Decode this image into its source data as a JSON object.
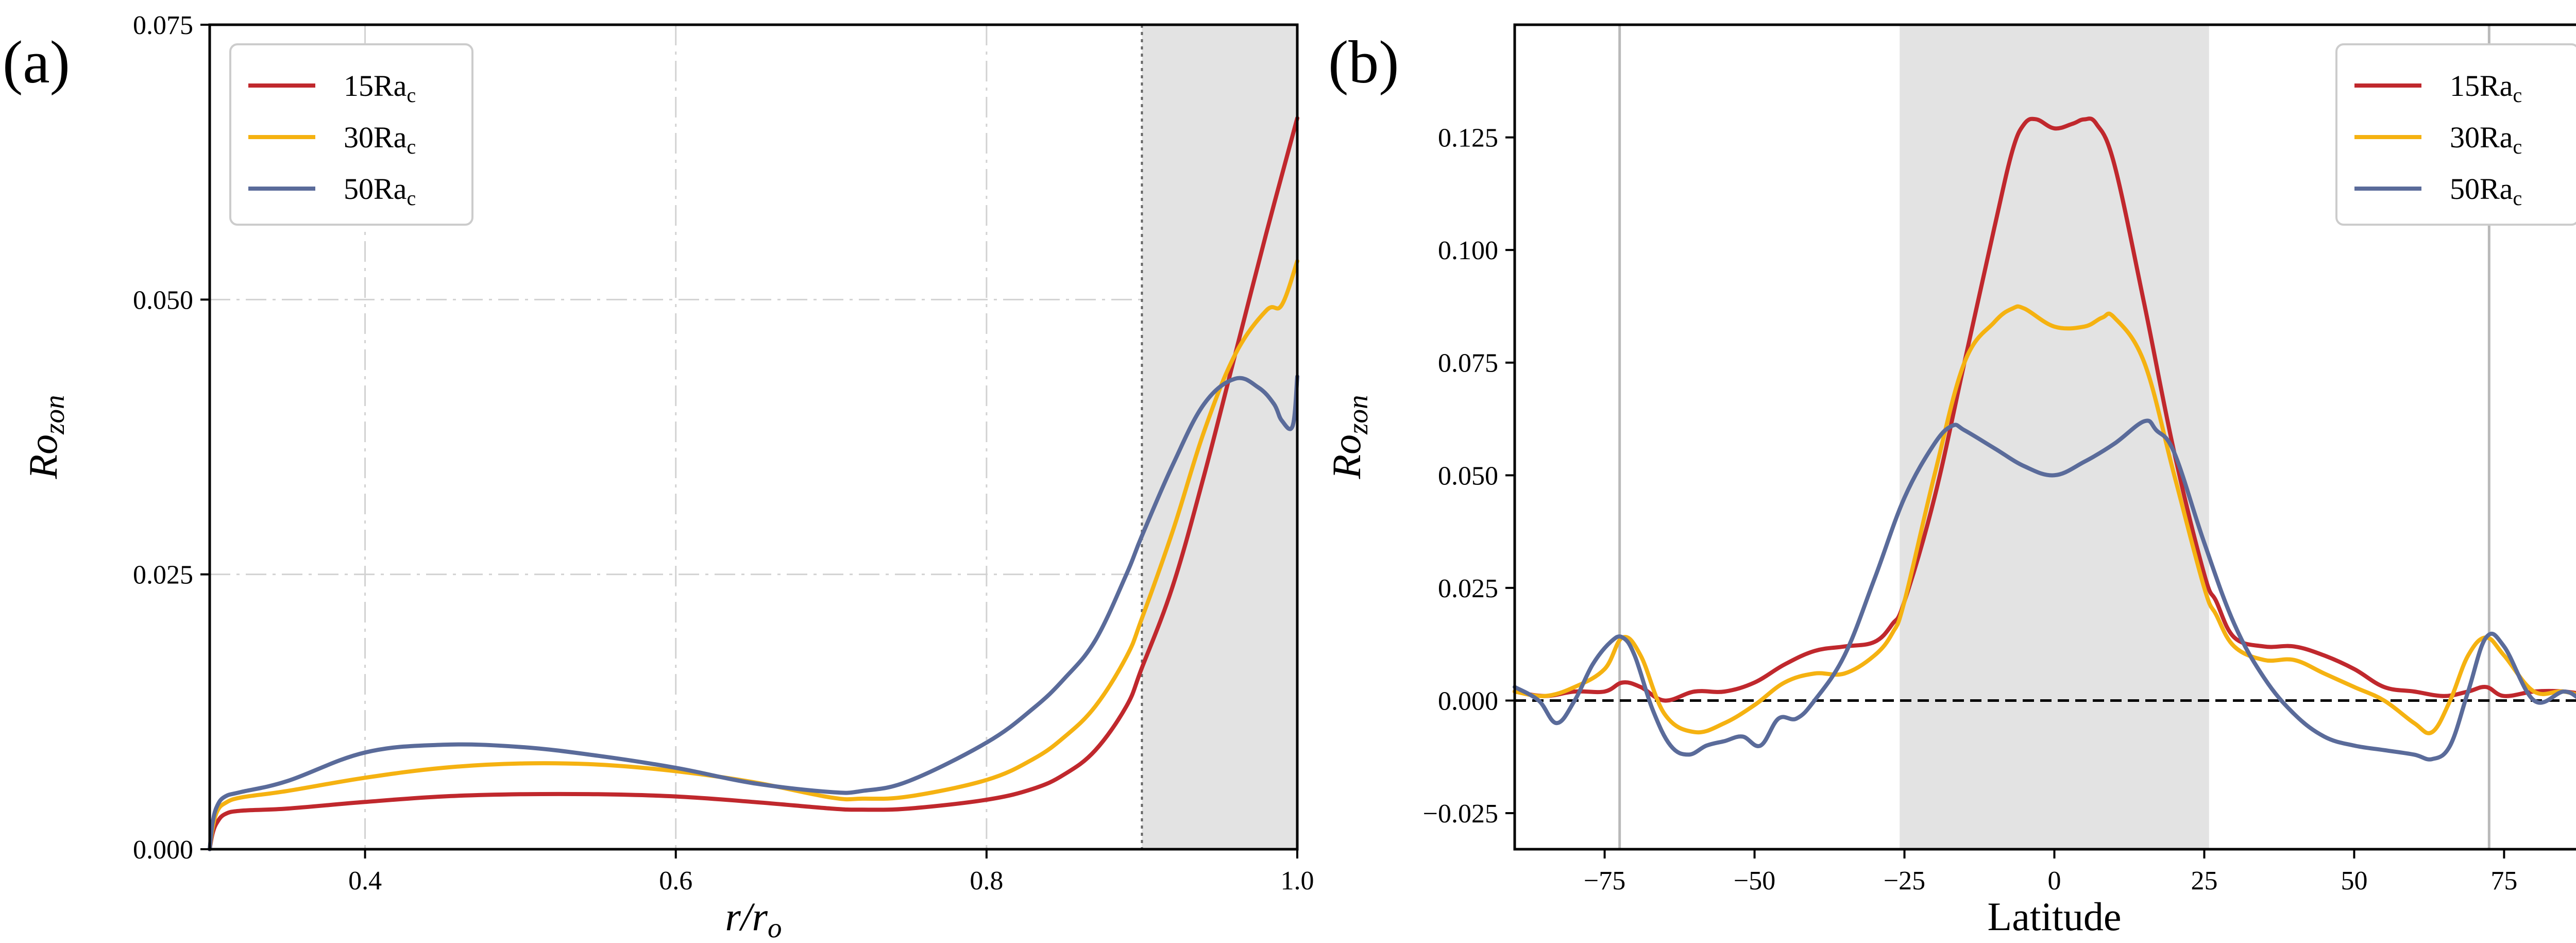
{
  "chart_data": [
    {
      "panel_label": "(a)",
      "type": "line",
      "xlabel": "r/r",
      "xlabel_sub": "o",
      "ylabel": "Ro",
      "ylabel_sub": "zon",
      "xlim": [
        0.3,
        1.0
      ],
      "ylim": [
        0.0,
        0.075
      ],
      "xticks": [
        0.4,
        0.6,
        0.8,
        1.0
      ],
      "xtick_labels": [
        "0.4",
        "0.6",
        "0.8",
        "1.0"
      ],
      "yticks": [
        0.0,
        0.025,
        0.05,
        0.075
      ],
      "ytick_labels": [
        "0.000",
        "0.025",
        "0.050",
        "0.075"
      ],
      "grid": "dash-dot",
      "shaded_region": [
        0.9,
        1.0
      ],
      "vline": 0.9,
      "legend_position": "top-left",
      "series": [
        {
          "name": "15Ra",
          "name_sub": "c",
          "color": "#c0282d",
          "x": [
            0.3,
            0.302,
            0.305,
            0.31,
            0.32,
            0.35,
            0.4,
            0.45,
            0.5,
            0.55,
            0.6,
            0.65,
            0.7,
            0.72,
            0.75,
            0.8,
            0.83,
            0.85,
            0.87,
            0.89,
            0.9,
            0.92,
            0.94,
            0.96,
            0.98,
            1.0
          ],
          "y": [
            0.0,
            0.0015,
            0.0025,
            0.0032,
            0.0035,
            0.0037,
            0.0043,
            0.0048,
            0.005,
            0.005,
            0.0048,
            0.0043,
            0.0037,
            0.0036,
            0.0037,
            0.0045,
            0.0055,
            0.0068,
            0.009,
            0.013,
            0.0165,
            0.024,
            0.034,
            0.045,
            0.056,
            0.0665
          ]
        },
        {
          "name": "30Ra",
          "name_sub": "c",
          "color": "#f5b211",
          "x": [
            0.3,
            0.302,
            0.305,
            0.31,
            0.32,
            0.35,
            0.4,
            0.45,
            0.5,
            0.55,
            0.6,
            0.65,
            0.7,
            0.72,
            0.75,
            0.8,
            0.83,
            0.85,
            0.87,
            0.89,
            0.9,
            0.92,
            0.94,
            0.96,
            0.98,
            0.99,
            1.0
          ],
          "y": [
            0.0,
            0.002,
            0.0035,
            0.0042,
            0.0047,
            0.0053,
            0.0065,
            0.0074,
            0.0078,
            0.0077,
            0.0071,
            0.0061,
            0.0047,
            0.0046,
            0.0048,
            0.0063,
            0.0082,
            0.0102,
            0.013,
            0.0175,
            0.021,
            0.029,
            0.038,
            0.045,
            0.049,
            0.0495,
            0.0535
          ]
        },
        {
          "name": "50Ra",
          "name_sub": "c",
          "color": "#5a6b9a",
          "x": [
            0.3,
            0.302,
            0.305,
            0.31,
            0.32,
            0.35,
            0.4,
            0.45,
            0.5,
            0.55,
            0.6,
            0.65,
            0.7,
            0.72,
            0.75,
            0.8,
            0.83,
            0.85,
            0.87,
            0.89,
            0.9,
            0.92,
            0.94,
            0.96,
            0.975,
            0.985,
            0.99,
            0.997,
            1.0
          ],
          "y": [
            0.0,
            0.0025,
            0.004,
            0.0048,
            0.0052,
            0.0062,
            0.0088,
            0.0095,
            0.0093,
            0.0085,
            0.0074,
            0.006,
            0.0052,
            0.0053,
            0.0062,
            0.0097,
            0.0128,
            0.0155,
            0.019,
            0.025,
            0.0285,
            0.035,
            0.0405,
            0.0428,
            0.042,
            0.0405,
            0.039,
            0.0385,
            0.043
          ]
        }
      ]
    },
    {
      "panel_label": "(b)",
      "type": "line",
      "xlabel": "Latitude",
      "ylabel": "Ro",
      "ylabel_sub": "zon",
      "xlim": [
        -90,
        90
      ],
      "ylim": [
        -0.033,
        0.15
      ],
      "xticks": [
        -75,
        -50,
        -25,
        0,
        25,
        50,
        75
      ],
      "xtick_labels": [
        "−75",
        "−50",
        "−25",
        "0",
        "25",
        "50",
        "75"
      ],
      "yticks": [
        -0.025,
        0.0,
        0.025,
        0.05,
        0.075,
        0.1,
        0.125
      ],
      "ytick_labels": [
        "−0.025",
        "0.000",
        "0.025",
        "0.050",
        "0.075",
        "0.100",
        "0.125"
      ],
      "grid": "none",
      "shaded_region": [
        -25.8,
        25.8
      ],
      "vlines": [
        -72.5,
        72.5
      ],
      "hline": 0.0,
      "legend_position": "top-right",
      "series": [
        {
          "name": "15Ra",
          "name_sub": "c",
          "color": "#c0282d",
          "x": [
            -90,
            -85,
            -80,
            -75,
            -72,
            -69,
            -65,
            -60,
            -55,
            -50,
            -45,
            -40,
            -35,
            -30,
            -27,
            -25,
            -20,
            -15,
            -10,
            -7,
            -5,
            -3,
            0,
            3,
            5,
            7,
            10,
            15,
            20,
            25,
            27,
            30,
            35,
            40,
            45,
            50,
            55,
            60,
            65,
            69,
            72,
            75,
            80,
            85,
            90
          ],
          "y": [
            0.002,
            0.001,
            0.002,
            0.002,
            0.004,
            0.003,
            0.0,
            0.002,
            0.002,
            0.004,
            0.008,
            0.011,
            0.012,
            0.013,
            0.017,
            0.022,
            0.045,
            0.075,
            0.105,
            0.122,
            0.128,
            0.129,
            0.127,
            0.128,
            0.129,
            0.128,
            0.119,
            0.088,
            0.055,
            0.028,
            0.022,
            0.014,
            0.012,
            0.012,
            0.01,
            0.007,
            0.003,
            0.002,
            0.001,
            0.002,
            0.003,
            0.001,
            0.002,
            0.002,
            0.001
          ]
        },
        {
          "name": "30Ra",
          "name_sub": "c",
          "color": "#f5b211",
          "x": [
            -90,
            -85,
            -80,
            -75,
            -72,
            -69,
            -65,
            -60,
            -55,
            -50,
            -45,
            -40,
            -35,
            -30,
            -27,
            -25,
            -20,
            -15,
            -10,
            -7,
            -5,
            0,
            5,
            8,
            10,
            15,
            20,
            25,
            27,
            30,
            35,
            40,
            45,
            50,
            55,
            60,
            63,
            66,
            69,
            72,
            75,
            80,
            85,
            90
          ],
          "y": [
            0.002,
            0.001,
            0.003,
            0.007,
            0.014,
            0.01,
            -0.003,
            -0.007,
            -0.005,
            -0.001,
            0.004,
            0.006,
            0.006,
            0.01,
            0.015,
            0.022,
            0.05,
            0.075,
            0.084,
            0.087,
            0.087,
            0.083,
            0.083,
            0.085,
            0.085,
            0.075,
            0.05,
            0.025,
            0.019,
            0.012,
            0.009,
            0.009,
            0.006,
            0.003,
            0.0,
            -0.005,
            -0.007,
            0.0,
            0.01,
            0.014,
            0.01,
            0.002,
            0.002,
            0.0
          ]
        },
        {
          "name": "50Ra",
          "name_sub": "c",
          "color": "#5a6b9a",
          "x": [
            -90,
            -86,
            -83,
            -80,
            -77,
            -74,
            -72,
            -70,
            -67,
            -64,
            -61,
            -58,
            -55,
            -52,
            -49,
            -46,
            -43,
            -40,
            -35,
            -30,
            -25,
            -20,
            -17,
            -15,
            -10,
            -5,
            0,
            5,
            10,
            15,
            17,
            20,
            25,
            30,
            35,
            40,
            45,
            50,
            55,
            60,
            63,
            66,
            69,
            72,
            75,
            80,
            85,
            88,
            90
          ],
          "y": [
            0.003,
            0.0,
            -0.005,
            0.0,
            0.008,
            0.013,
            0.014,
            0.01,
            -0.002,
            -0.01,
            -0.012,
            -0.01,
            -0.009,
            -0.008,
            -0.01,
            -0.004,
            -0.004,
            0.0,
            0.01,
            0.027,
            0.045,
            0.057,
            0.061,
            0.06,
            0.056,
            0.052,
            0.05,
            0.053,
            0.057,
            0.062,
            0.06,
            0.055,
            0.035,
            0.017,
            0.005,
            -0.003,
            -0.008,
            -0.01,
            -0.011,
            -0.012,
            -0.013,
            -0.01,
            0.002,
            0.014,
            0.012,
            0.0,
            0.002,
            0.0,
            -0.001
          ]
        }
      ]
    }
  ]
}
